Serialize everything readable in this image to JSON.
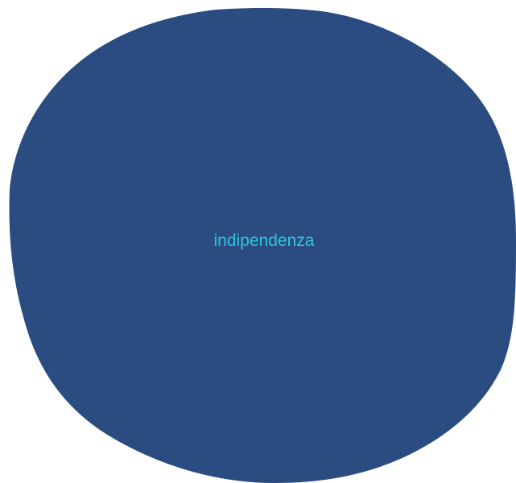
{
  "diagram": {
    "shape": "blob",
    "label": "indipendenza",
    "fill_color": "#2b4c81",
    "label_color": "#2ec4e0",
    "background_color": "#ffffff"
  }
}
